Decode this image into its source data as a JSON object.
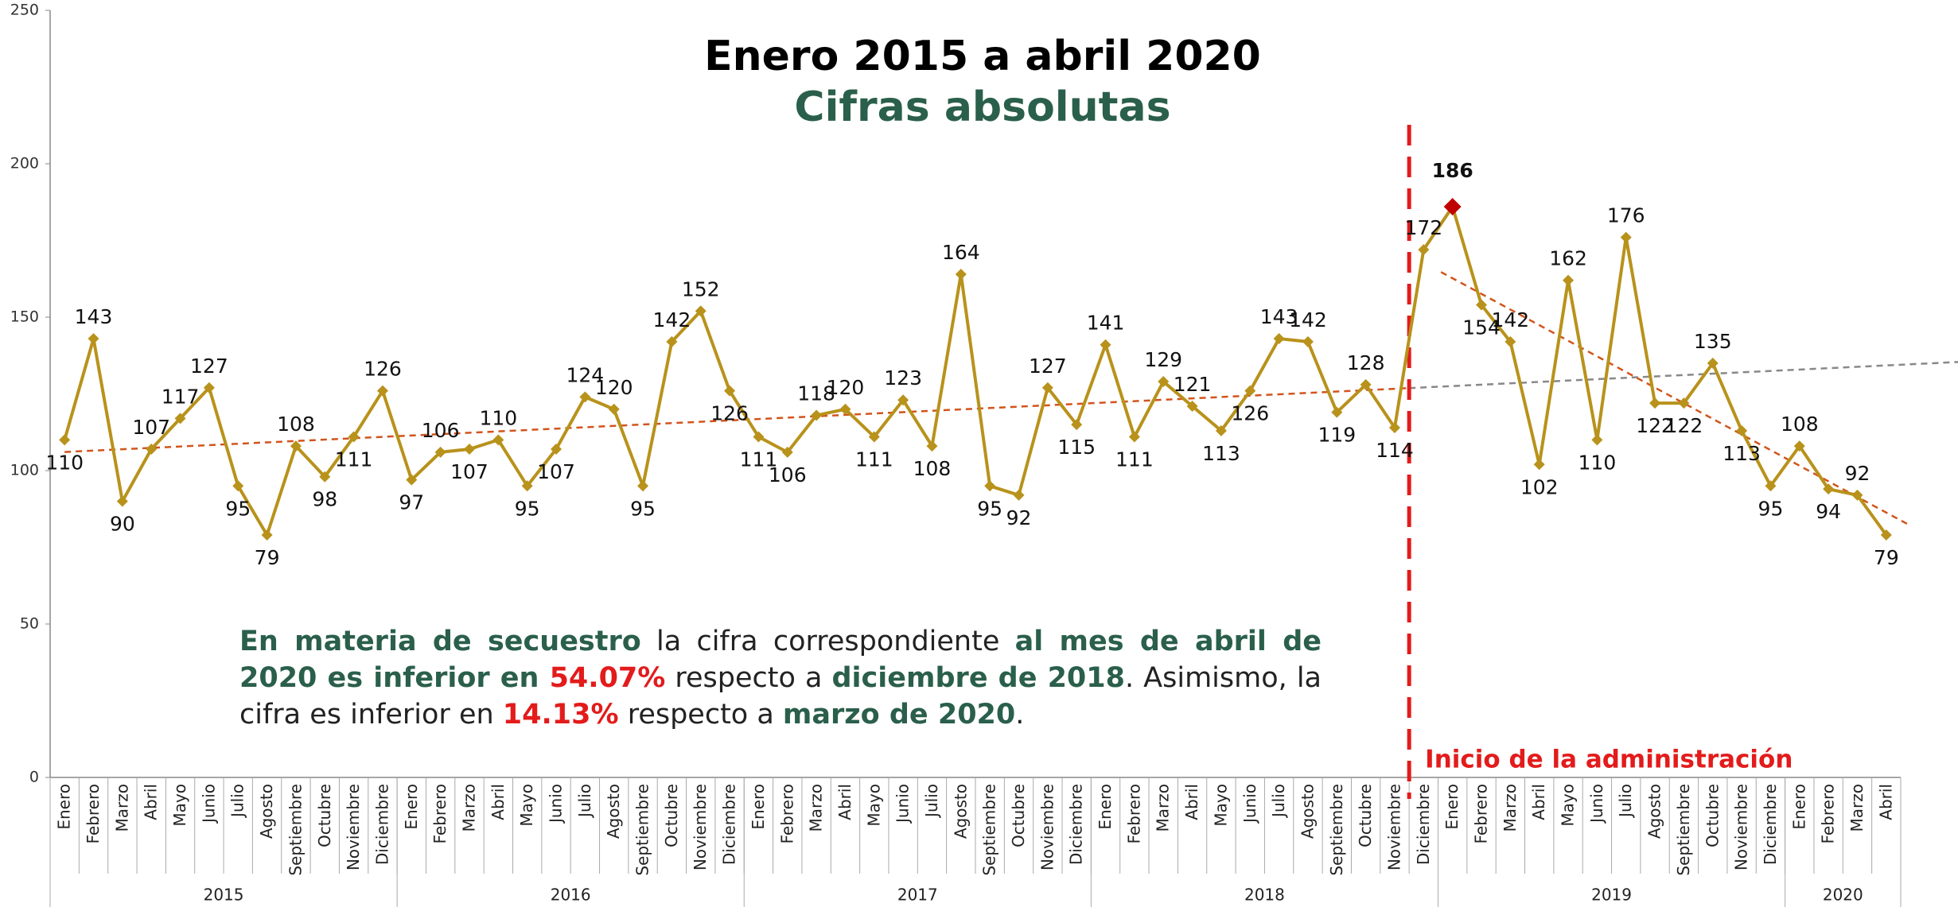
{
  "chart_data": {
    "type": "line",
    "title": "Enero 2015 a abril 2020",
    "subtitle": "Cifras absolutas",
    "groups": [
      {
        "name": "2015",
        "categories": [
          "Enero",
          "Febrero",
          "Marzo",
          "Abril",
          "Mayo",
          "Junio",
          "Julio",
          "Agosto",
          "Septiembre",
          "Octubre",
          "Noviembre",
          "Diciembre"
        ]
      },
      {
        "name": "2016",
        "categories": [
          "Enero",
          "Febrero",
          "Marzo",
          "Abril",
          "Mayo",
          "Junio",
          "Julio",
          "Agosto",
          "Septiembre",
          "Octubre",
          "Noviembre",
          "Diciembre"
        ]
      },
      {
        "name": "2017",
        "categories": [
          "Enero",
          "Febrero",
          "Marzo",
          "Abril",
          "Mayo",
          "Junio",
          "Julio",
          "Agosto",
          "Septiembre",
          "Octubre",
          "Noviembre",
          "Diciembre"
        ]
      },
      {
        "name": "2018",
        "categories": [
          "Enero",
          "Febrero",
          "Marzo",
          "Abril",
          "Mayo",
          "Junio",
          "Julio",
          "Agosto",
          "Septiembre",
          "Octubre",
          "Noviembre",
          "Diciembre"
        ]
      },
      {
        "name": "2019",
        "categories": [
          "Enero",
          "Febrero",
          "Marzo",
          "Abril",
          "Mayo",
          "Junio",
          "Julio",
          "Agosto",
          "Septiembre",
          "Octubre",
          "Noviembre",
          "Diciembre"
        ]
      },
      {
        "name": "2020",
        "categories": [
          "Enero",
          "Febrero",
          "Marzo",
          "Abril"
        ]
      }
    ],
    "series": [
      {
        "color": "#b8921b",
        "highlight_max_color": "#c00000",
        "values": [
          110,
          143,
          90,
          107,
          117,
          127,
          95,
          79,
          108,
          98,
          111,
          126,
          97,
          106,
          107,
          110,
          95,
          107,
          124,
          120,
          95,
          142,
          152,
          126,
          111,
          106,
          118,
          120,
          111,
          123,
          108,
          164,
          95,
          92,
          127,
          115,
          141,
          111,
          129,
          121,
          113,
          126,
          143,
          142,
          119,
          128,
          114,
          172,
          186,
          154,
          142,
          102,
          162,
          110,
          176,
          122,
          122,
          135,
          113,
          95,
          108,
          94,
          92,
          79
        ]
      }
    ],
    "ylim": [
      0,
      250
    ],
    "yticks": [
      0,
      50,
      100,
      150,
      200,
      250
    ],
    "trend_colors": {
      "before": "#d2541c",
      "extension": "#888888",
      "after": "#d2541c"
    },
    "marker_annotation": {
      "text": "Inicio de la administración",
      "color": "#e31b1b"
    },
    "annotation": {
      "segments": [
        {
          "text": "En materia de secuestro",
          "style": "em-green"
        },
        {
          "text": " la cifra correspondiente ",
          "style": "plain"
        },
        {
          "text": "al mes de abril de 2020 es inferior en ",
          "style": "em-green"
        },
        {
          "text": "54.07%",
          "style": "em-red"
        },
        {
          "text": " respecto a ",
          "style": "plain"
        },
        {
          "text": "diciembre de 2018",
          "style": "em-green"
        },
        {
          "text": ". Asimismo, la cifra es inferior en ",
          "style": "plain"
        },
        {
          "text": "14.13%",
          "style": "em-red"
        },
        {
          "text": " respecto a ",
          "style": "plain"
        },
        {
          "text": "marzo de 2020",
          "style": "em-green"
        },
        {
          "text": ".",
          "style": "plain"
        }
      ]
    }
  }
}
